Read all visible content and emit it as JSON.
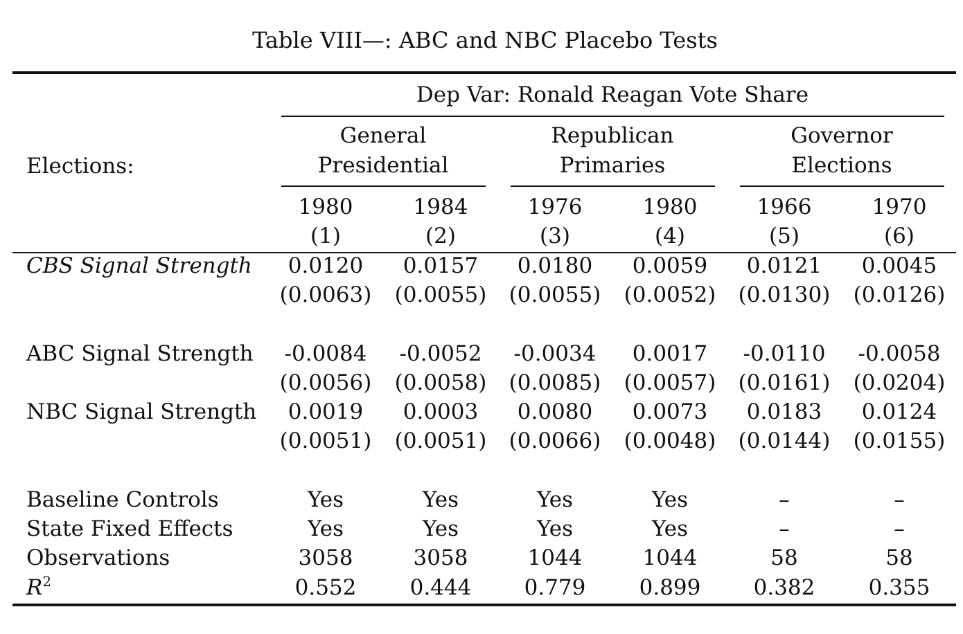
{
  "title": "Table VIII—: ABC and NBC Placebo Tests",
  "dep_var": "Dep Var: Ronald Reagan Vote Share",
  "elections_label": "Elections:",
  "groups": [
    {
      "line1": "General",
      "line2": "Presidential"
    },
    {
      "line1": "Republican",
      "line2": "Primaries"
    },
    {
      "line1": "Governor",
      "line2": "Elections"
    }
  ],
  "columns": [
    {
      "year": "1980",
      "num": "(1)"
    },
    {
      "year": "1984",
      "num": "(2)"
    },
    {
      "year": "1976",
      "num": "(3)"
    },
    {
      "year": "1980",
      "num": "(4)"
    },
    {
      "year": "1966",
      "num": "(5)"
    },
    {
      "year": "1970",
      "num": "(6)"
    }
  ],
  "rows": [
    {
      "label": "CBS Signal Strength",
      "coef": [
        "0.0120",
        "0.0157",
        "0.0180",
        "0.0059",
        "0.0121",
        "0.0045"
      ],
      "se": [
        "(0.0063)",
        "(0.0055)",
        "(0.0055)",
        "(0.0052)",
        "(0.0130)",
        "(0.0126)"
      ]
    },
    {
      "label": "ABC Signal Strength",
      "coef": [
        "-0.0084",
        "-0.0052",
        "-0.0034",
        "0.0017",
        "-0.0110",
        "-0.0058"
      ],
      "se": [
        "(0.0056)",
        "(0.0058)",
        "(0.0085)",
        "(0.0057)",
        "(0.0161)",
        "(0.0204)"
      ]
    },
    {
      "label": "NBC Signal Strength",
      "coef": [
        "0.0019",
        "0.0003",
        "0.0080",
        "0.0073",
        "0.0183",
        "0.0124"
      ],
      "se": [
        "(0.0051)",
        "(0.0051)",
        "(0.0066)",
        "(0.0048)",
        "(0.0144)",
        "(0.0155)"
      ]
    }
  ],
  "stats": [
    {
      "label": "Baseline Controls",
      "values": [
        "Yes",
        "Yes",
        "Yes",
        "Yes",
        "–",
        "–"
      ]
    },
    {
      "label": "State Fixed Effects",
      "values": [
        "Yes",
        "Yes",
        "Yes",
        "Yes",
        "–",
        "–"
      ]
    },
    {
      "label": "Observations",
      "values": [
        "3058",
        "3058",
        "1044",
        "1044",
        "58",
        "58"
      ]
    },
    {
      "label": "R",
      "sup": "2",
      "values": [
        "0.552",
        "0.444",
        "0.779",
        "0.899",
        "0.382",
        "0.355"
      ]
    }
  ]
}
